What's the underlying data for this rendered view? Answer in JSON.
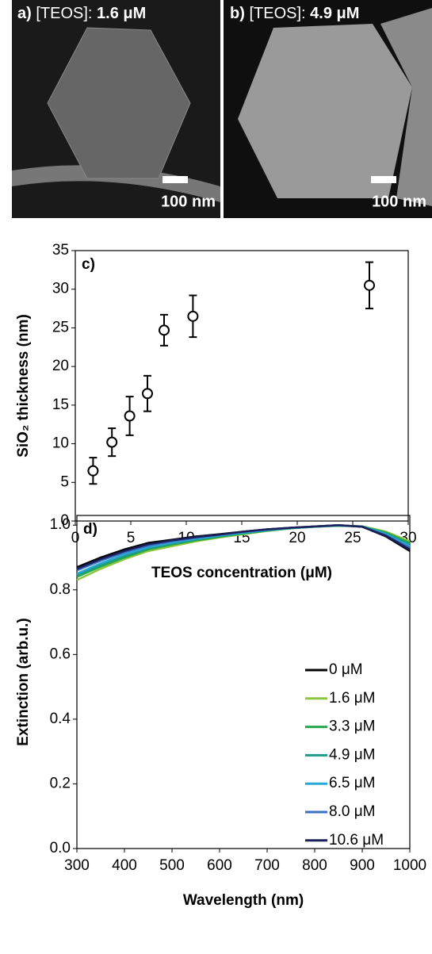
{
  "images": [
    {
      "label": "a)",
      "prefix": "[TEOS]:",
      "value": "1.6 μM",
      "scale": "100 nm"
    },
    {
      "label": "b)",
      "prefix": "[TEOS]:",
      "value": "4.9 μM",
      "scale": "100 nm"
    }
  ],
  "chart_data": [
    {
      "type": "scatter",
      "annotation": "c)",
      "x_label": "TEOS concentration (μM)",
      "y_label": "SiO₂ thickness (nm)",
      "x": [
        1.6,
        3.3,
        4.9,
        6.5,
        8.0,
        10.6,
        26.5
      ],
      "values": [
        6.5,
        10.2,
        13.6,
        16.5,
        24.7,
        26.5,
        30.5
      ],
      "errors": [
        1.7,
        1.8,
        2.5,
        2.3,
        2.0,
        2.7,
        3.0
      ],
      "color": "#000000",
      "xlim": [
        0,
        30
      ],
      "xticks": [
        0,
        5,
        10,
        15,
        20,
        25,
        30
      ],
      "ylim": [
        0,
        35
      ],
      "yticks": [
        0,
        5,
        10,
        15,
        20,
        25,
        30,
        35
      ]
    },
    {
      "type": "line",
      "annotation": "d)",
      "x_label": "Wavelength (nm)",
      "y_label": "Extinction (arb.u.)",
      "x": [
        300,
        350,
        400,
        450,
        500,
        550,
        600,
        650,
        700,
        750,
        800,
        850,
        900,
        950,
        1000
      ],
      "series": [
        {
          "name": "0 μM",
          "color": "#000000",
          "values": [
            0.87,
            0.9,
            0.925,
            0.945,
            0.955,
            0.965,
            0.972,
            0.98,
            0.987,
            0.992,
            0.996,
            1.0,
            0.995,
            0.965,
            0.92
          ]
        },
        {
          "name": "1.6 μM",
          "color": "#8dc63f",
          "values": [
            0.83,
            0.865,
            0.895,
            0.92,
            0.935,
            0.95,
            0.962,
            0.972,
            0.982,
            0.99,
            0.995,
            0.998,
            0.997,
            0.98,
            0.95
          ]
        },
        {
          "name": "3.3 μM",
          "color": "#23a94b",
          "values": [
            0.84,
            0.872,
            0.9,
            0.925,
            0.94,
            0.953,
            0.964,
            0.974,
            0.983,
            0.99,
            0.995,
            0.998,
            0.996,
            0.977,
            0.945
          ]
        },
        {
          "name": "4.9 μM",
          "color": "#1e9a8a",
          "values": [
            0.845,
            0.877,
            0.905,
            0.928,
            0.943,
            0.956,
            0.966,
            0.976,
            0.984,
            0.991,
            0.995,
            0.999,
            0.996,
            0.975,
            0.94
          ]
        },
        {
          "name": "6.5 μM",
          "color": "#29a8d6",
          "values": [
            0.85,
            0.882,
            0.91,
            0.932,
            0.946,
            0.958,
            0.968,
            0.977,
            0.985,
            0.991,
            0.996,
            0.999,
            0.996,
            0.972,
            0.935
          ]
        },
        {
          "name": "8.0 μM",
          "color": "#3a6fc4",
          "values": [
            0.86,
            0.89,
            0.916,
            0.937,
            0.95,
            0.961,
            0.97,
            0.979,
            0.986,
            0.992,
            0.996,
            1.0,
            0.995,
            0.969,
            0.93
          ]
        },
        {
          "name": "10.6 μM",
          "color": "#1b1f5a",
          "values": [
            0.865,
            0.895,
            0.92,
            0.941,
            0.953,
            0.963,
            0.971,
            0.98,
            0.987,
            0.992,
            0.996,
            1.0,
            0.995,
            0.967,
            0.925
          ]
        }
      ],
      "legend": "right",
      "xlim": [
        300,
        1000
      ],
      "xticks": [
        300,
        400,
        500,
        600,
        700,
        800,
        900,
        1000
      ],
      "ylim": [
        0,
        1.03
      ],
      "yticks": [
        {
          "value": 0,
          "label": "0.0"
        },
        {
          "value": 0.2,
          "label": "0.2"
        },
        {
          "value": 0.4,
          "label": "0.4"
        },
        {
          "value": 0.6,
          "label": "0.6"
        },
        {
          "value": 0.8,
          "label": "0.8"
        },
        {
          "value": 1,
          "label": "1.0"
        }
      ]
    }
  ]
}
